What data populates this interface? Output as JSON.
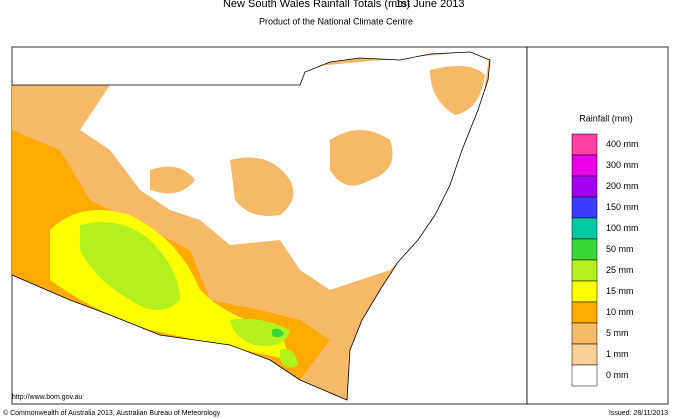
{
  "header": {
    "title": "New South Wales Rainfall Totals (mm)",
    "date": "1st June 2013",
    "subtitle": "Product of the National Climate Centre"
  },
  "legend": {
    "title": "Rainfall (mm)",
    "items": [
      {
        "label": "400 mm",
        "color": "#ff3fa6"
      },
      {
        "label": "300 mm",
        "color": "#e900e9"
      },
      {
        "label": "200 mm",
        "color": "#a600f0"
      },
      {
        "label": "150 mm",
        "color": "#3c3cff"
      },
      {
        "label": "100 mm",
        "color": "#00c8a0"
      },
      {
        "label": "50 mm",
        "color": "#38d838"
      },
      {
        "label": "25 mm",
        "color": "#b4ef1e"
      },
      {
        "label": "15 mm",
        "color": "#ffff00"
      },
      {
        "label": "10 mm",
        "color": "#ffaa00"
      },
      {
        "label": "5 mm",
        "color": "#f5b968"
      },
      {
        "label": "1 mm",
        "color": "#f8cf96"
      },
      {
        "label": "0 mm",
        "color": "#ffffff"
      }
    ]
  },
  "footer": {
    "url": "http://www.bom.gov.au",
    "copyright": "© Commonwealth of Australia 2013, Australian Bureau of Meteorology",
    "issued": "Issued: 28/11/2013"
  }
}
